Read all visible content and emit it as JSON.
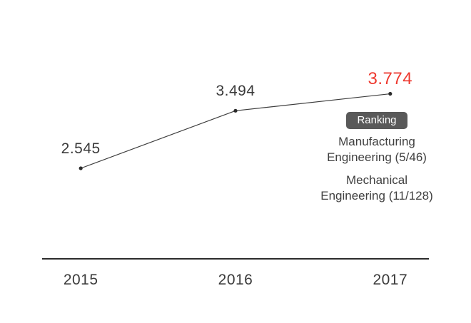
{
  "chart_data": {
    "type": "line",
    "categories": [
      "2015",
      "2016",
      "2017"
    ],
    "values": [
      2.545,
      3.494,
      3.774
    ],
    "value_labels": [
      "2.545",
      "3.494",
      "3.774"
    ],
    "highlight_index": 2,
    "title": "",
    "xlabel": "",
    "ylabel": "",
    "ylim": [
      2.0,
      4.2
    ],
    "grid": false,
    "legend": "none",
    "colors": {
      "line": "#3d3d3d",
      "point": "#2b2b2b",
      "value_label": "#3a3a3a",
      "highlight_value_label": "#ee3a30",
      "axis": "#2b2b2b",
      "tick_label": "#3a3a3a"
    },
    "annotation": {
      "badge": "Ranking",
      "badge_bg": "#595959",
      "badge_text_color": "#ffffff",
      "entries": [
        "Manufacturing Engineering (5/46)",
        "Mechanical Engineering (11/128)"
      ]
    }
  }
}
